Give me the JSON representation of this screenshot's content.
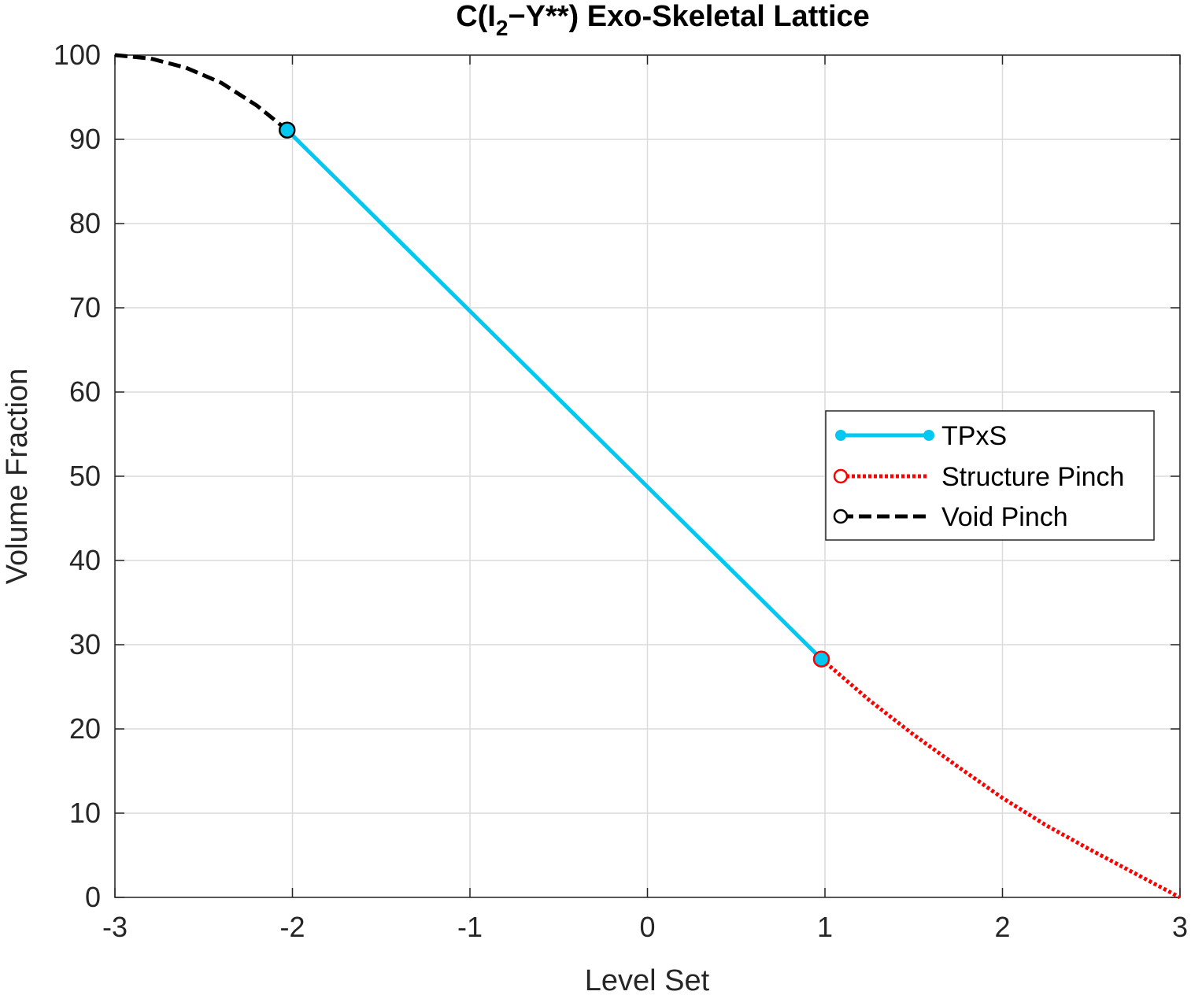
{
  "chart_data": {
    "type": "line",
    "title": "C(I₂−Y**) Exo-Skeletal Lattice",
    "title_parts": {
      "prefix": "C(I",
      "subscript": "2",
      "suffix": "−Y**) Exo-Skeletal Lattice"
    },
    "xlabel": "Level Set",
    "ylabel": "Volume Fraction",
    "xlim": [
      -3,
      3
    ],
    "ylim": [
      0,
      100
    ],
    "xticks": [
      "-3",
      "-2",
      "-1",
      "0",
      "1",
      "2",
      "3"
    ],
    "yticks": [
      "0",
      "10",
      "20",
      "30",
      "40",
      "50",
      "60",
      "70",
      "80",
      "90",
      "100"
    ],
    "grid": true,
    "legend_position": "right-middle",
    "series": [
      {
        "name": "TPxS",
        "style": "solid",
        "color": "#00c8f0",
        "x": [
          -2.03,
          0.98
        ],
        "y": [
          91.1,
          28.3
        ]
      },
      {
        "name": "Structure Pinch",
        "style": "dotted",
        "color": "#ff0000",
        "x": [
          0.98,
          1.25,
          1.5,
          1.75,
          2.0,
          2.25,
          2.5,
          2.75,
          3.0
        ],
        "y": [
          28.3,
          23.4,
          19.3,
          15.5,
          11.8,
          8.5,
          5.6,
          2.8,
          0.0
        ]
      },
      {
        "name": "Void Pinch",
        "style": "dashed",
        "color": "#000000",
        "x": [
          -3.0,
          -2.8,
          -2.6,
          -2.4,
          -2.2,
          -2.03
        ],
        "y": [
          100.0,
          99.6,
          98.5,
          96.7,
          94.0,
          91.1
        ]
      }
    ],
    "markers": [
      {
        "x": -2.03,
        "y": 91.1,
        "fill": "#00c8f0",
        "stroke": "#000000"
      },
      {
        "x": 0.98,
        "y": 28.3,
        "fill": "#00c8f0",
        "stroke": "#ff0000"
      }
    ]
  }
}
